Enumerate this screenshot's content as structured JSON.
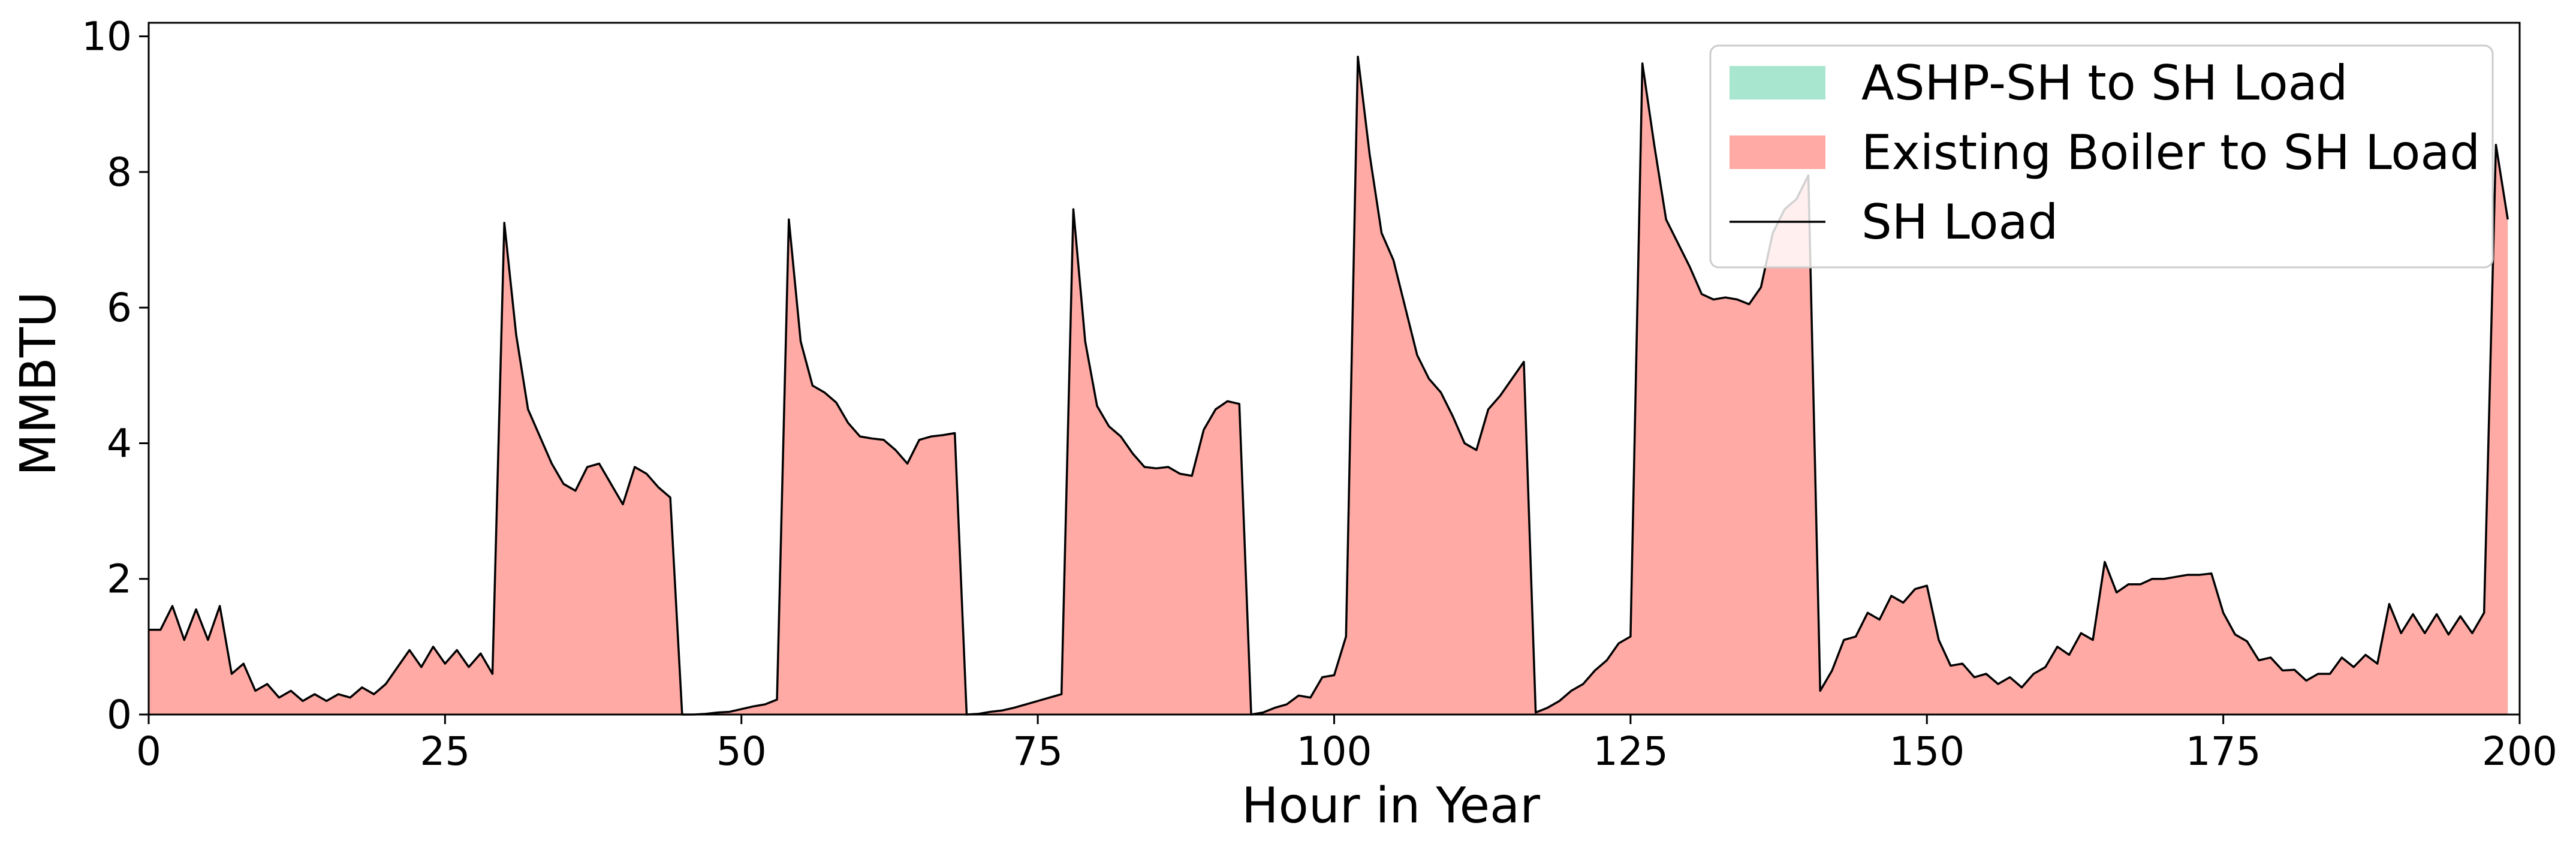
{
  "chart_data": {
    "type": "area",
    "title": "",
    "xlabel": "Hour in Year",
    "ylabel": "MMBTU",
    "xlim": [
      0,
      200
    ],
    "ylim": [
      0,
      10.2
    ],
    "xticks": [
      0,
      25,
      50,
      75,
      100,
      125,
      150,
      175,
      200
    ],
    "yticks": [
      0,
      2,
      4,
      6,
      8,
      10
    ],
    "grid": false,
    "legend": {
      "placement": "top-right"
    },
    "series": [
      {
        "name": "ASHP-SH to SH Load",
        "kind": "stacked-area",
        "color": "#a8e6cf",
        "values": "zeros"
      },
      {
        "name": "Existing Boiler to SH Load",
        "kind": "stacked-area",
        "color": "#ffaaa5",
        "values": "equal to SH Load"
      },
      {
        "name": "SH Load",
        "kind": "line",
        "color": "#000000"
      }
    ],
    "x": [
      0,
      1,
      2,
      3,
      4,
      5,
      6,
      7,
      8,
      9,
      10,
      11,
      12,
      13,
      14,
      15,
      16,
      17,
      18,
      19,
      20,
      21,
      22,
      23,
      24,
      25,
      26,
      27,
      28,
      29,
      30,
      31,
      32,
      33,
      34,
      35,
      36,
      37,
      38,
      39,
      40,
      41,
      42,
      43,
      44,
      45,
      46,
      47,
      48,
      49,
      50,
      51,
      52,
      53,
      54,
      55,
      56,
      57,
      58,
      59,
      60,
      61,
      62,
      63,
      64,
      65,
      66,
      67,
      68,
      69,
      70,
      71,
      72,
      73,
      74,
      75,
      76,
      77,
      78,
      79,
      80,
      81,
      82,
      83,
      84,
      85,
      86,
      87,
      88,
      89,
      90,
      91,
      92,
      93,
      94,
      95,
      96,
      97,
      98,
      99,
      100,
      101,
      102,
      103,
      104,
      105,
      106,
      107,
      108,
      109,
      110,
      111,
      112,
      113,
      114,
      115,
      116,
      117,
      118,
      119,
      120,
      121,
      122,
      123,
      124,
      125,
      126,
      127,
      128,
      129,
      130,
      131,
      132,
      133,
      134,
      135,
      136,
      137,
      138,
      139,
      140,
      141,
      142,
      143,
      144,
      145,
      146,
      147,
      148,
      149,
      150,
      151,
      152,
      153,
      154,
      155,
      156,
      157,
      158,
      159,
      160,
      161,
      162,
      163,
      164,
      165,
      166,
      167,
      168,
      169,
      170,
      171,
      172,
      173,
      174,
      175,
      176,
      177,
      178,
      179,
      180,
      181,
      182,
      183,
      184,
      185,
      186,
      187,
      188,
      189,
      190,
      191,
      192,
      193,
      194,
      195,
      196,
      197,
      198,
      199
    ],
    "sh_load": [
      1.25,
      1.25,
      1.6,
      1.1,
      1.55,
      1.1,
      1.6,
      0.6,
      0.75,
      0.35,
      0.45,
      0.25,
      0.35,
      0.2,
      0.3,
      0.2,
      0.3,
      0.25,
      0.4,
      0.3,
      0.45,
      0.7,
      0.95,
      0.7,
      1.0,
      0.75,
      0.95,
      0.7,
      0.9,
      0.6,
      7.25,
      5.6,
      4.5,
      4.1,
      3.7,
      3.4,
      3.3,
      3.65,
      3.7,
      3.4,
      3.1,
      3.65,
      3.55,
      3.35,
      3.2,
      0.0,
      0.0,
      0.01,
      0.03,
      0.04,
      0.08,
      0.12,
      0.15,
      0.22,
      7.3,
      5.5,
      4.85,
      4.75,
      4.6,
      4.3,
      4.1,
      4.07,
      4.05,
      3.9,
      3.7,
      4.05,
      4.1,
      4.12,
      4.15,
      0.0,
      0.01,
      0.04,
      0.06,
      0.1,
      0.15,
      0.2,
      0.25,
      0.3,
      7.45,
      5.5,
      4.55,
      4.25,
      4.1,
      3.85,
      3.65,
      3.63,
      3.65,
      3.55,
      3.52,
      4.2,
      4.5,
      4.62,
      4.58,
      0.0,
      0.03,
      0.1,
      0.15,
      0.28,
      0.25,
      0.55,
      0.58,
      1.15,
      9.7,
      8.25,
      7.1,
      6.7,
      6.0,
      5.3,
      4.95,
      4.75,
      4.4,
      4.0,
      3.9,
      4.5,
      4.7,
      4.95,
      5.2,
      0.03,
      0.1,
      0.2,
      0.35,
      0.45,
      0.65,
      0.8,
      1.05,
      1.15,
      9.6,
      8.4,
      7.3,
      6.95,
      6.6,
      6.2,
      6.12,
      6.15,
      6.12,
      6.05,
      6.3,
      7.1,
      7.45,
      7.6,
      7.95,
      0.35,
      0.65,
      1.1,
      1.15,
      1.5,
      1.4,
      1.75,
      1.65,
      1.85,
      1.9,
      1.1,
      0.72,
      0.75,
      0.55,
      0.6,
      0.45,
      0.55,
      0.4,
      0.6,
      0.7,
      1.0,
      0.88,
      1.2,
      1.1,
      2.25,
      1.8,
      1.92,
      1.92,
      2.0,
      2.0,
      2.03,
      2.06,
      2.06,
      2.08,
      1.5,
      1.18,
      1.08,
      0.8,
      0.84,
      0.65,
      0.66,
      0.5,
      0.6,
      0.6,
      0.84,
      0.7,
      0.88,
      0.75,
      1.63,
      1.2,
      1.48,
      1.2,
      1.48,
      1.18,
      1.45,
      1.2,
      1.5,
      8.4,
      7.3
    ]
  }
}
